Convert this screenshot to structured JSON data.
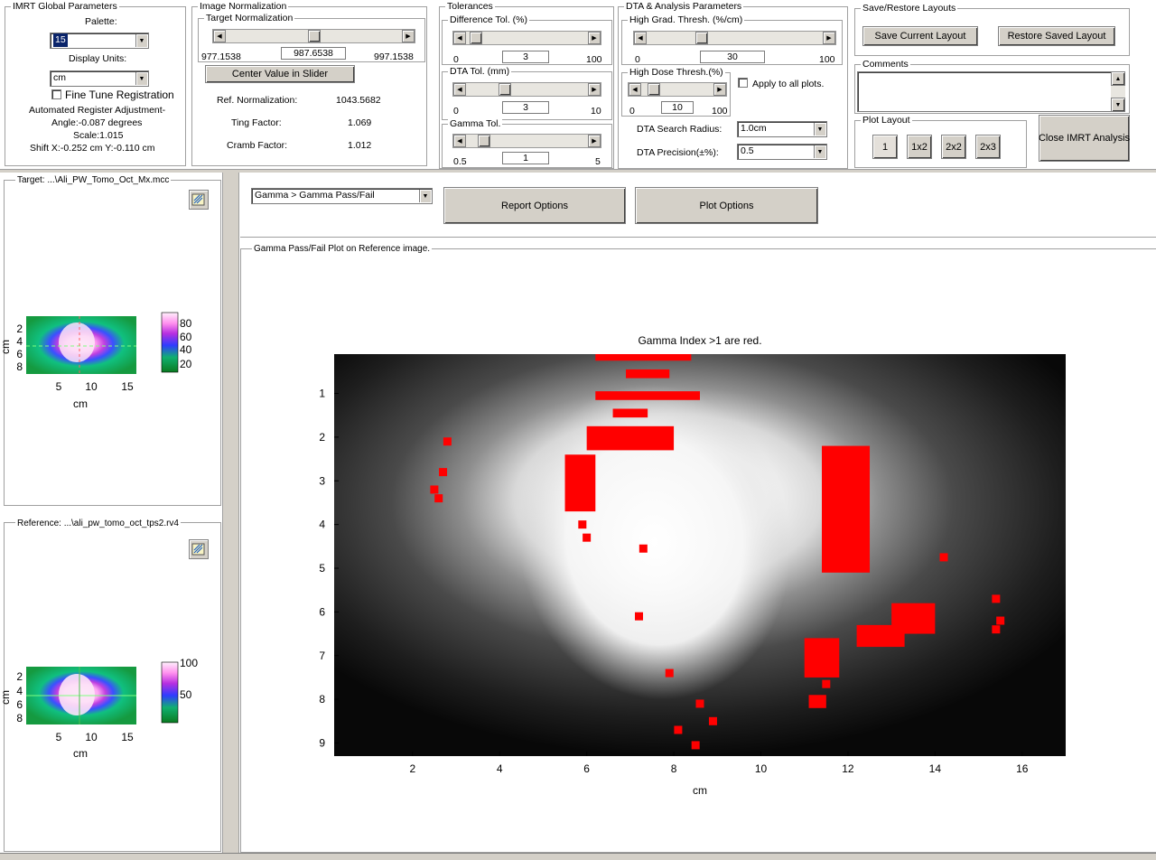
{
  "imrt_global": {
    "title": "IMRT Global Parameters",
    "palette_label": "Palette:",
    "palette_value": "15",
    "display_units_label": "Display Units:",
    "display_units_value": "cm",
    "fine_tune_label": "Fine Tune Registration",
    "auto_register_label": "Automated Register Adjustment-",
    "angle_text": "Angle:-0.087 degrees",
    "scale_text": "Scale:1.015",
    "shift_text": "Shift X:-0.252 cm Y:-0.110 cm"
  },
  "image_normalization": {
    "title": "Image Normalization",
    "target_title": "Target Normalization",
    "slider_min": "977.1538",
    "slider_value": "987.6538",
    "slider_max": "997.1538",
    "slider_level": 0.5,
    "center_button": "Center Value in Slider",
    "ref_norm_label": "Ref. Normalization:",
    "ref_norm_value": "1043.5682",
    "ting_label": "Ting Factor:",
    "ting_value": "1.069",
    "cramb_label": "Cramb Factor:",
    "cramb_value": "1.012"
  },
  "tolerances": {
    "title": "Tolerances",
    "diff_title": "Difference Tol. (%)",
    "diff_min": "0",
    "diff_value": "3",
    "diff_max": "100",
    "diff_level": 0.03,
    "dta_title": "DTA Tol. (mm)",
    "dta_min": "0",
    "dta_value": "3",
    "dta_max": "10",
    "dta_level": 0.3,
    "gamma_title": "Gamma Tol.",
    "gamma_min": "0.5",
    "gamma_value": "1",
    "gamma_max": "5",
    "gamma_level": 0.11
  },
  "dta_analysis": {
    "title": "DTA & Analysis Parameters",
    "hgt_title": "High Grad. Thresh. (%/cm)",
    "hgt_min": "0",
    "hgt_value": "30",
    "hgt_max": "100",
    "hgt_level": 0.3,
    "hdt_title": "High Dose Thresh.(%)",
    "hdt_min": "0",
    "hdt_value": "10",
    "hdt_max": "100",
    "hdt_level": 0.1,
    "apply_all_label": "Apply to all plots.",
    "search_radius_label": "DTA Search Radius:",
    "search_radius_value": "1.0cm",
    "precision_label": "DTA Precision(±%):",
    "precision_value": "0.5"
  },
  "layouts": {
    "title": "Save/Restore Layouts",
    "save_button": "Save Current Layout",
    "restore_button": "Restore Saved Layout",
    "comments_title": "Comments",
    "plot_layout_title": "Plot Layout",
    "layout_buttons": [
      "1",
      "1x2",
      "2x2",
      "2x3"
    ],
    "close_button": "Close IMRT Analysis"
  },
  "target_panel": {
    "title": "Target: ...\\Ali_PW_Tomo_Oct_Mx.mcc",
    "y_ticks": [
      "2",
      "4",
      "6",
      "8"
    ],
    "x_ticks": [
      "5",
      "10",
      "15"
    ],
    "axis_unit": "cm",
    "colorbar_ticks": [
      "80",
      "60",
      "40",
      "20"
    ]
  },
  "reference_panel": {
    "title": "Reference: ...\\ali_pw_tomo_oct_tps2.rv4",
    "y_ticks": [
      "2",
      "4",
      "6",
      "8"
    ],
    "x_ticks": [
      "5",
      "10",
      "15"
    ],
    "axis_unit": "cm",
    "colorbar_ticks": [
      "100",
      "50"
    ]
  },
  "main": {
    "plot_select": "Gamma > Gamma Pass/Fail",
    "report_button": "Report Options",
    "plot_options_button": "Plot Options",
    "plot_frame_title": "Gamma Pass/Fail Plot on Reference image."
  },
  "chart_data": {
    "type": "heatmap",
    "title": "Gamma Index >1 are red.",
    "xlabel": "cm",
    "ylabel": "",
    "xlim": [
      0.2,
      17.0
    ],
    "ylim": [
      9.3,
      0.1
    ],
    "x_ticks": [
      2,
      4,
      6,
      8,
      10,
      12,
      14,
      16
    ],
    "y_ticks": [
      1,
      2,
      3,
      4,
      5,
      6,
      7,
      8,
      9
    ],
    "colors": {
      "fail": "#ff0000",
      "background": "#000000",
      "high_dose": "#ffffff"
    },
    "fail_regions": [
      {
        "x": [
          6.2,
          8.4
        ],
        "y": [
          0.1,
          0.25
        ]
      },
      {
        "x": [
          6.9,
          7.9
        ],
        "y": [
          0.45,
          0.65
        ]
      },
      {
        "x": [
          6.2,
          8.6
        ],
        "y": [
          0.95,
          1.15
        ]
      },
      {
        "x": [
          6.6,
          7.4
        ],
        "y": [
          1.35,
          1.55
        ]
      },
      {
        "x": [
          6.0,
          8.0
        ],
        "y": [
          1.75,
          2.3
        ]
      },
      {
        "x": [
          5.5,
          6.2
        ],
        "y": [
          2.4,
          3.7
        ]
      },
      {
        "x": [
          11.4,
          12.5
        ],
        "y": [
          2.2,
          5.1
        ]
      },
      {
        "x": [
          13.0,
          14.0
        ],
        "y": [
          5.8,
          6.5
        ]
      },
      {
        "x": [
          12.2,
          13.3
        ],
        "y": [
          6.3,
          6.8
        ]
      },
      {
        "x": [
          11.0,
          11.8
        ],
        "y": [
          6.6,
          7.5
        ]
      },
      {
        "x": [
          11.1,
          11.5
        ],
        "y": [
          7.9,
          8.2
        ]
      }
    ],
    "fail_points": [
      [
        2.8,
        2.1
      ],
      [
        2.7,
        2.8
      ],
      [
        2.5,
        3.2
      ],
      [
        2.6,
        3.4
      ],
      [
        5.9,
        4.0
      ],
      [
        6.0,
        4.3
      ],
      [
        7.3,
        4.55
      ],
      [
        7.2,
        6.1
      ],
      [
        7.9,
        7.4
      ],
      [
        8.6,
        8.1
      ],
      [
        8.1,
        8.7
      ],
      [
        8.9,
        8.5
      ],
      [
        8.5,
        9.05
      ],
      [
        14.2,
        4.75
      ],
      [
        15.4,
        5.7
      ],
      [
        15.5,
        6.2
      ],
      [
        15.4,
        6.4
      ],
      [
        11.5,
        7.65
      ]
    ]
  }
}
